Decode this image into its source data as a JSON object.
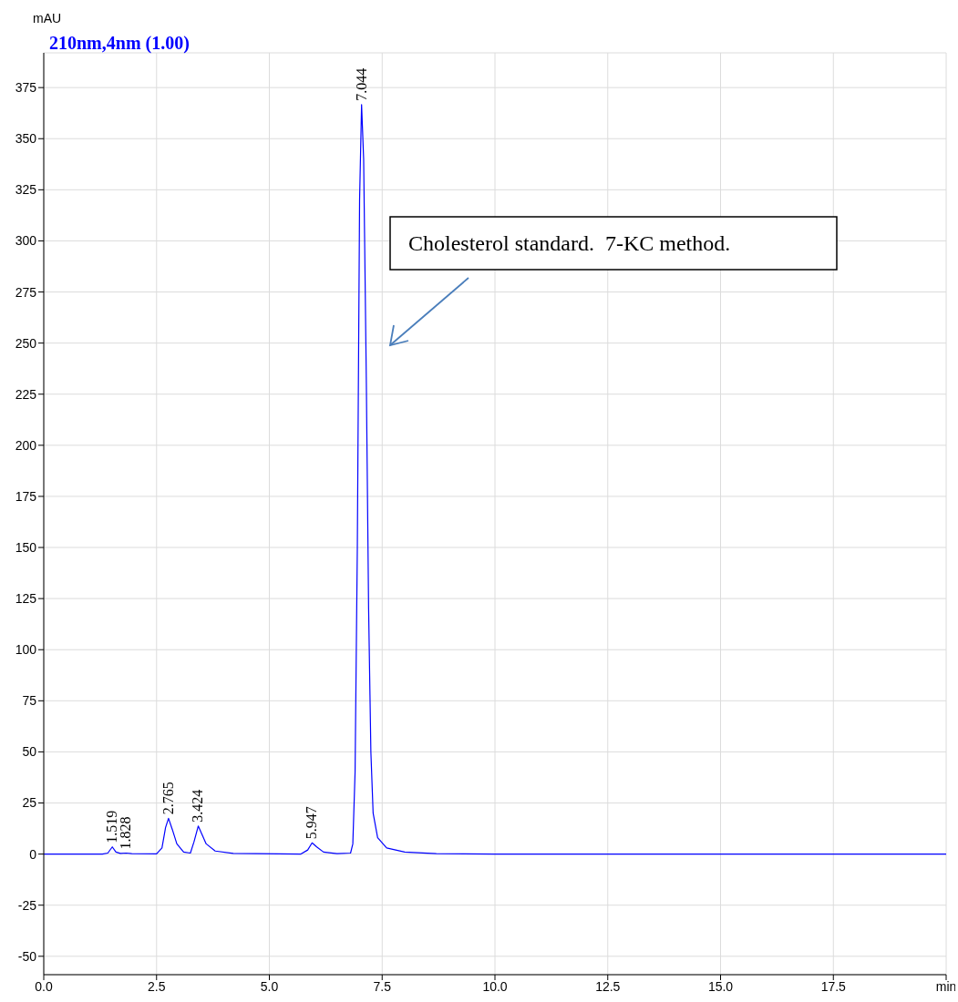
{
  "chart_data": {
    "type": "line",
    "ylabel": "mAU",
    "legend": "top left",
    "grid": true,
    "marker": "none",
    "line_style": "solid",
    "xlim": [
      0,
      20
    ],
    "xticks": [
      {
        "value": 0,
        "label": "0.0"
      },
      2.5,
      {
        "value": 5,
        "label": "5.0"
      },
      7.5,
      {
        "value": 10,
        "label": "10.0"
      },
      12.5,
      {
        "value": 15,
        "label": "15.0"
      },
      17.5,
      {
        "value": 20,
        "label": "min"
      }
    ],
    "ylim": [
      -59,
      392
    ],
    "yticks": [
      -50,
      -25,
      0,
      25,
      50,
      75,
      100,
      125,
      150,
      175,
      200,
      225,
      250,
      275,
      300,
      325,
      350,
      375
    ],
    "series": [
      {
        "name": "210nm,4nm (1.00)",
        "color": "#0000ff",
        "x": [
          0,
          1.3,
          1.42,
          1.519,
          1.6,
          1.7,
          1.828,
          1.95,
          2.5,
          2.62,
          2.7,
          2.765,
          2.85,
          2.95,
          3.1,
          3.25,
          3.33,
          3.424,
          3.5,
          3.6,
          3.8,
          4.2,
          5.7,
          5.85,
          5.947,
          6.05,
          6.2,
          6.5,
          6.8,
          6.85,
          6.9,
          6.95,
          7.0,
          7.044,
          7.09,
          7.15,
          7.2,
          7.25,
          7.3,
          7.4,
          7.6,
          8,
          8.7,
          10,
          20
        ],
        "values": [
          0,
          0,
          0.5,
          3.5,
          1,
          0.3,
          0.5,
          0.2,
          0.1,
          3,
          13,
          17.5,
          12,
          5,
          1,
          0.5,
          6,
          13.7,
          10,
          5,
          1.5,
          0.3,
          0,
          2,
          5.5,
          3.5,
          1,
          0.2,
          0.5,
          5,
          40,
          150,
          320,
          366.7,
          340,
          230,
          120,
          50,
          20,
          8,
          3,
          1,
          0.2,
          0,
          0
        ]
      }
    ],
    "annotations": [
      {
        "text": "1.519",
        "x": 1.519,
        "y": 3.5
      },
      {
        "text": "1.828",
        "x": 1.828,
        "y": 0.5
      },
      {
        "text": "2.765",
        "x": 2.765,
        "y": 17.5
      },
      {
        "text": "3.424",
        "x": 3.424,
        "y": 13.7
      },
      {
        "text": "5.947",
        "x": 5.947,
        "y": 5.5
      },
      {
        "text": "7.044",
        "x": 7.044,
        "y": 366.7
      },
      "Cholesterol standard.  7-KC method."
    ]
  }
}
